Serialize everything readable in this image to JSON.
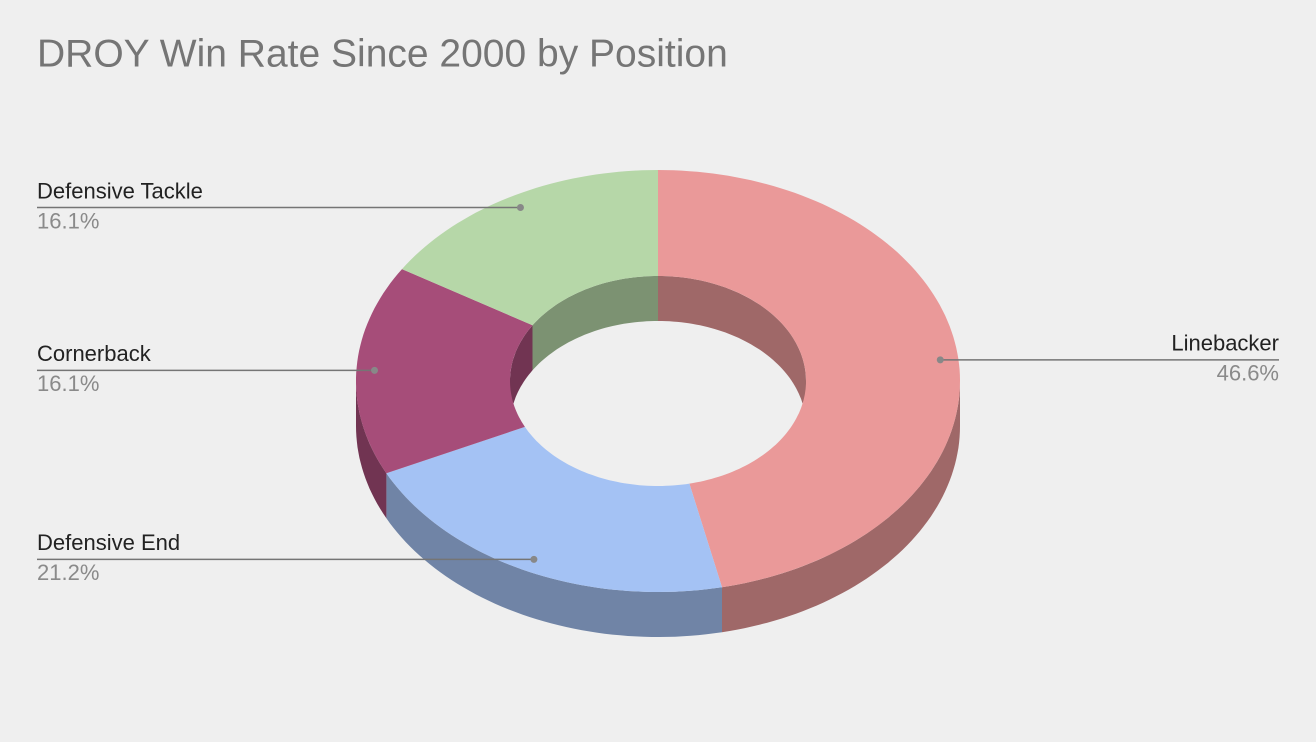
{
  "chart_data": {
    "type": "pie",
    "title": "DROY Win Rate Since 2000 by Position",
    "categories": [
      "Linebacker",
      "Defensive End",
      "Cornerback",
      "Defensive Tackle"
    ],
    "values": [
      46.6,
      21.2,
      16.1,
      16.1
    ],
    "value_labels": [
      "46.6%",
      "21.2%",
      "16.1%",
      "16.1%"
    ],
    "colors": [
      "#ea9999",
      "#a4c2f4",
      "#a64d79",
      "#b6d7a8"
    ]
  }
}
